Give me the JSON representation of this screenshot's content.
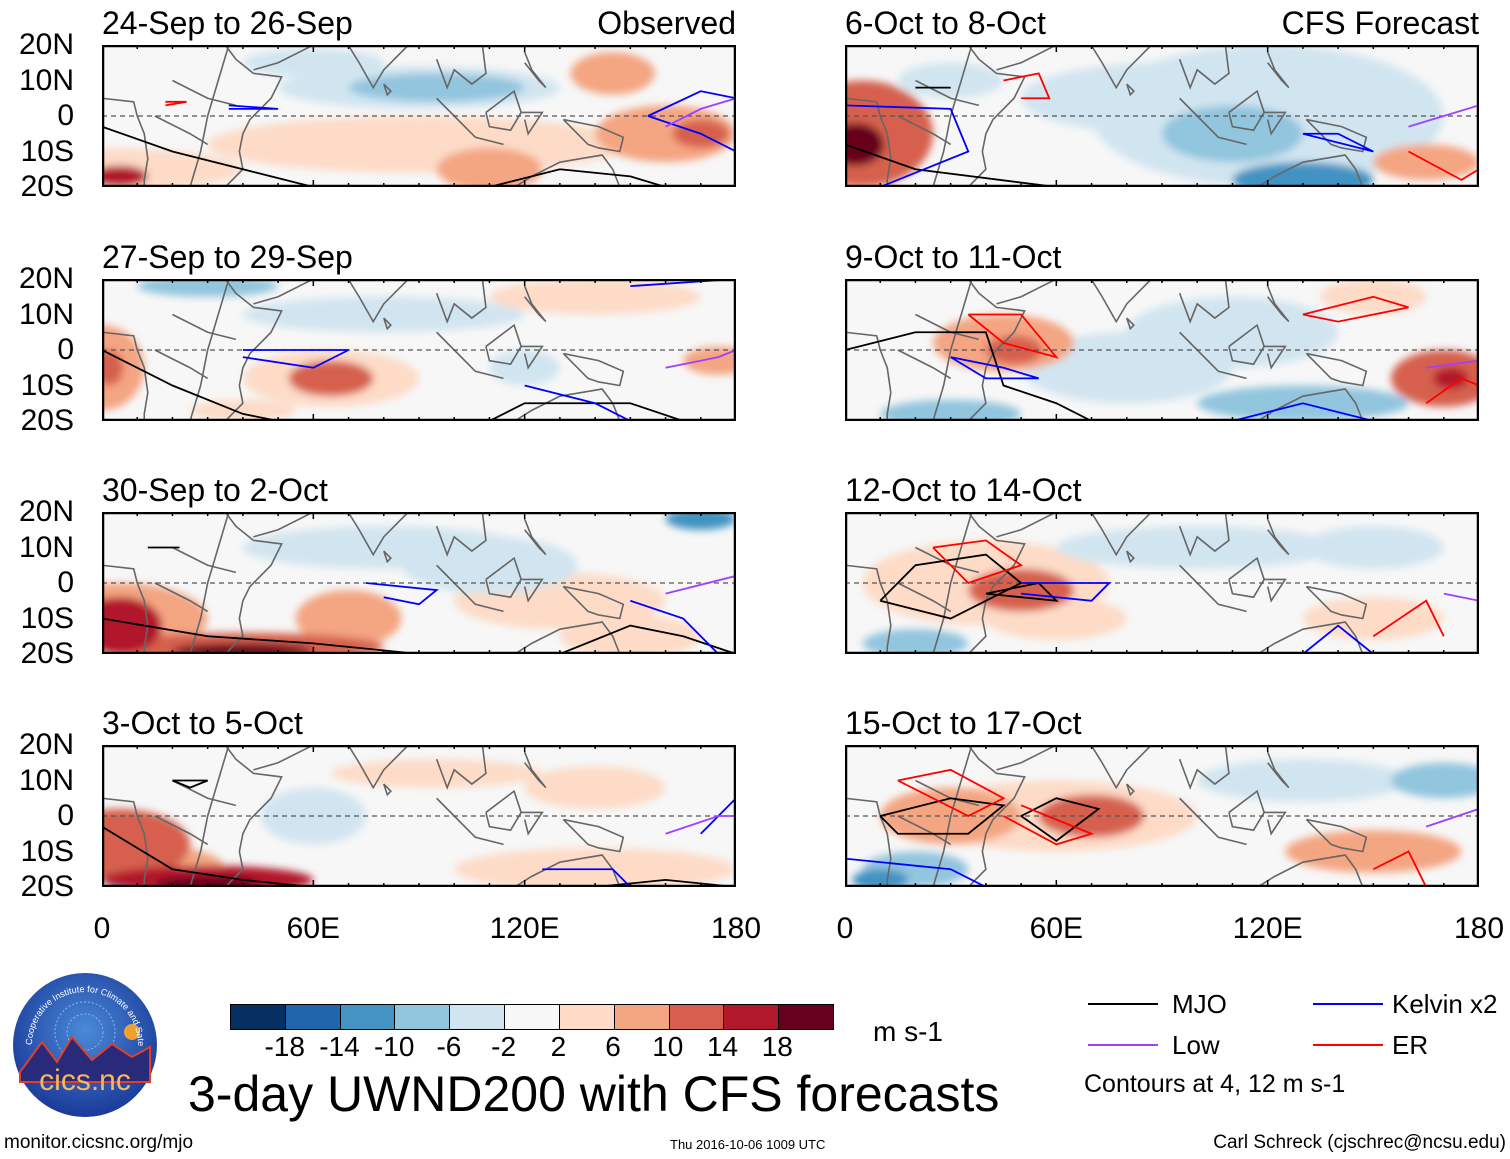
{
  "panel_group_labels": {
    "observed": "Observed",
    "forecast": "CFS Forecast"
  },
  "panels": [
    {
      "title": "24-Sep to 26-Sep",
      "column": "observed"
    },
    {
      "title": "27-Sep to 29-Sep",
      "column": "observed"
    },
    {
      "title": "30-Sep to 2-Oct",
      "column": "observed"
    },
    {
      "title": "3-Oct to 5-Oct",
      "column": "observed"
    },
    {
      "title": "6-Oct to 8-Oct",
      "column": "forecast"
    },
    {
      "title": "9-Oct to 11-Oct",
      "column": "forecast"
    },
    {
      "title": "12-Oct to 14-Oct",
      "column": "forecast"
    },
    {
      "title": "15-Oct to 17-Oct",
      "column": "forecast"
    }
  ],
  "lat_labels": [
    "20N",
    "10N",
    "0",
    "10S",
    "20S"
  ],
  "lon_labels": [
    "0",
    "60E",
    "120E",
    "180"
  ],
  "colorbar": {
    "colors": [
      "#053061",
      "#2166ac",
      "#4393c3",
      "#92c5de",
      "#d1e5f0",
      "#f7f7f7",
      "#fddbc7",
      "#f4a582",
      "#d6604d",
      "#b2182b",
      "#67001f"
    ],
    "labels": [
      "-18",
      "-14",
      "-10",
      "-6",
      "-2",
      "2",
      "6",
      "10",
      "14",
      "18"
    ],
    "units": "m s-1"
  },
  "legend": {
    "items": [
      {
        "label": "MJO",
        "color": "#000000"
      },
      {
        "label": "Low",
        "color": "#a040ff"
      },
      {
        "label": "Kelvin x2",
        "color": "#0000ff"
      },
      {
        "label": "ER",
        "color": "#ff0000"
      }
    ],
    "note": "Contours at 4, 12 m s-1"
  },
  "title": "3-day UWND200 with CFS forecasts",
  "logo": {
    "text": "cics.nc",
    "ring_text": "Cooperative Institute for Climate and Satellites"
  },
  "footer": {
    "url": "monitor.cicsnc.org/mjo",
    "timestamp": "Thu 2016-10-06 1009 UTC",
    "credit": "Carl Schreck (cjschrec@ncsu.edu)"
  }
}
